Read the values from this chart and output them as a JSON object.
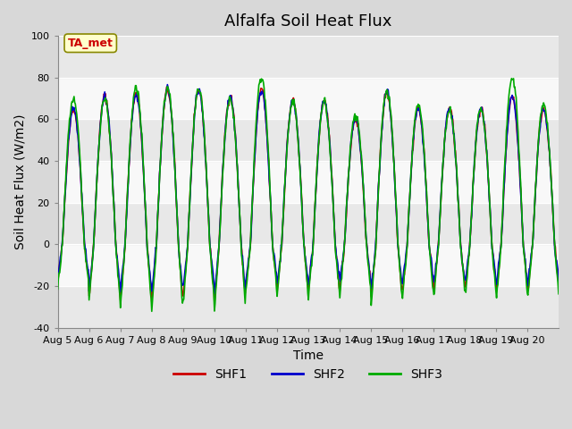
{
  "title": "Alfalfa Soil Heat Flux",
  "ylabel": "Soil Heat Flux (W/m2)",
  "xlabel": "Time",
  "ylim": [
    -40,
    100
  ],
  "yticks": [
    -40,
    -20,
    0,
    20,
    40,
    60,
    80,
    100
  ],
  "xtick_labels": [
    "Aug 5",
    "Aug 6",
    "Aug 7",
    "Aug 8",
    "Aug 9",
    "Aug 10",
    "Aug 11",
    "Aug 12",
    "Aug 13",
    "Aug 14",
    "Aug 15",
    "Aug 16",
    "Aug 17",
    "Aug 18",
    "Aug 19",
    "Aug 20"
  ],
  "n_days": 16,
  "colors": {
    "SHF1": "#cc0000",
    "SHF2": "#0000cc",
    "SHF3": "#00aa00"
  },
  "legend_labels": [
    "SHF1",
    "SHF2",
    "SHF3"
  ],
  "annotation_text": "TA_met",
  "annotation_color": "#cc0000",
  "annotation_bg": "#ffffcc",
  "plot_bg": "#f0f0f0",
  "linewidth": 1.2,
  "title_fontsize": 13,
  "label_fontsize": 10,
  "tick_fontsize": 8,
  "day_peaks_shf1": [
    65,
    71,
    72,
    74,
    74,
    71,
    74,
    69,
    69,
    60,
    73,
    65,
    65,
    65,
    71,
    65
  ],
  "day_peaks_shf2": [
    65,
    71,
    72,
    74,
    74,
    71,
    74,
    69,
    69,
    60,
    73,
    65,
    65,
    65,
    71,
    65
  ],
  "day_peaks_shf3": [
    70,
    70,
    75,
    75,
    75,
    70,
    80,
    68,
    68,
    62,
    74,
    67,
    65,
    65,
    80,
    67
  ],
  "day_troughs": [
    -18,
    -25,
    -27,
    -28,
    -25,
    -28,
    -20,
    -22,
    -22,
    -22,
    -25,
    -22,
    -22,
    -22,
    -22,
    -22
  ]
}
